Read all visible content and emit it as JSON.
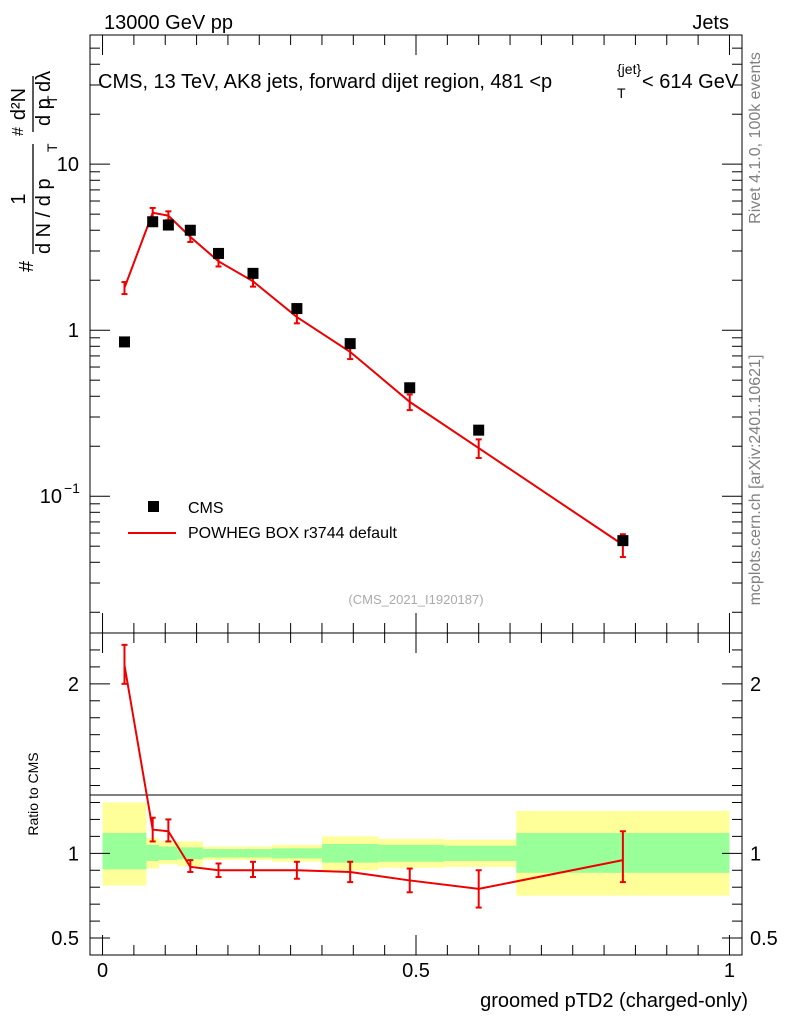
{
  "header": {
    "left": "13000 GeV pp",
    "right": "Jets"
  },
  "side_labels": {
    "rivet": "Rivet 4.1.0,  100k events",
    "mcplots": "mcplots.cern.ch [arXiv:2401.10621]"
  },
  "chart_data": {
    "type": "scatter",
    "title": "CMS, 13 TeV, AK8 jets, forward dijet region, 481 <p_T^{jet}< 614 GeV",
    "title_parts": {
      "before": "CMS, 13 TeV, AK8 jets, forward dijet region, 481 <p",
      "sup": "{jet}",
      "sub": "T",
      "after": "< 614 GeV"
    },
    "xlabel": "groomed pTD2 (charged-only)",
    "ylabel": "# 1/(dN/dp_T) # d²N/(dp_T dλ)",
    "ylabel_parts": {
      "hash": "#",
      "one": "1",
      "frac1_den": "d N / d p",
      "frac2_num": "d²N",
      "frac2_den": "d p",
      "sub": "T",
      "lambda": "dλ"
    },
    "xlim": [
      -0.02,
      1.02
    ],
    "ylim_log": [
      0.015,
      60
    ],
    "x_ticks": [
      {
        "value": 0,
        "label": "0"
      },
      {
        "value": 0.5,
        "label": "0.5"
      },
      {
        "value": 1,
        "label": "1"
      }
    ],
    "y_ticks": [
      {
        "value": 0.1,
        "label": "10",
        "exp": "−1"
      },
      {
        "value": 1,
        "label": "1",
        "exp": ""
      },
      {
        "value": 10,
        "label": "10",
        "exp": ""
      }
    ],
    "legend": {
      "position": "lower-left",
      "entries": [
        {
          "name": "CMS",
          "style": "marker"
        },
        {
          "name": "POWHEG BOX r3744 default",
          "style": "line"
        }
      ]
    },
    "watermark": "(CMS_2021_I1920187)",
    "series": [
      {
        "name": "CMS",
        "color": "#000000",
        "points": [
          {
            "x": 0.035,
            "y": 0.85
          },
          {
            "x": 0.08,
            "y": 4.5
          },
          {
            "x": 0.105,
            "y": 4.3
          },
          {
            "x": 0.14,
            "y": 4.0
          },
          {
            "x": 0.185,
            "y": 2.9
          },
          {
            "x": 0.24,
            "y": 2.2
          },
          {
            "x": 0.31,
            "y": 1.35
          },
          {
            "x": 0.395,
            "y": 0.83
          },
          {
            "x": 0.49,
            "y": 0.45
          },
          {
            "x": 0.6,
            "y": 0.25
          },
          {
            "x": 0.83,
            "y": 0.054
          }
        ]
      },
      {
        "name": "POWHEG BOX r3744 default",
        "color": "#ee0000",
        "points": [
          {
            "x": 0.035,
            "y": 1.8,
            "lo": 1.65,
            "hi": 1.95
          },
          {
            "x": 0.08,
            "y": 5.1,
            "lo": 4.75,
            "hi": 5.45
          },
          {
            "x": 0.105,
            "y": 4.9,
            "lo": 4.6,
            "hi": 5.2
          },
          {
            "x": 0.14,
            "y": 3.65,
            "lo": 3.4,
            "hi": 3.9
          },
          {
            "x": 0.185,
            "y": 2.6,
            "lo": 2.42,
            "hi": 2.78
          },
          {
            "x": 0.24,
            "y": 1.97,
            "lo": 1.83,
            "hi": 2.11
          },
          {
            "x": 0.31,
            "y": 1.2,
            "lo": 1.1,
            "hi": 1.3
          },
          {
            "x": 0.395,
            "y": 0.74,
            "lo": 0.67,
            "hi": 0.81
          },
          {
            "x": 0.49,
            "y": 0.37,
            "lo": 0.33,
            "hi": 0.41
          },
          {
            "x": 0.6,
            "y": 0.195,
            "lo": 0.17,
            "hi": 0.22
          },
          {
            "x": 0.83,
            "y": 0.051,
            "lo": 0.043,
            "hi": 0.059
          }
        ]
      }
    ],
    "ratio": {
      "ylabel": "Ratio to CMS",
      "ylim": [
        0.4,
        2.3
      ],
      "y_ticks": [
        {
          "value": 0.5,
          "label": "0.5"
        },
        {
          "value": 1,
          "label": "1"
        },
        {
          "value": 2,
          "label": "2"
        }
      ],
      "bands": [
        {
          "x0": 0.0,
          "x1": 0.07,
          "stat_lo": 0.905,
          "stat_hi": 1.12,
          "tot_lo": 0.81,
          "tot_hi": 1.3
        },
        {
          "x0": 0.07,
          "x1": 0.09,
          "stat_lo": 0.955,
          "stat_hi": 1.05,
          "tot_lo": 0.91,
          "tot_hi": 1.09
        },
        {
          "x0": 0.09,
          "x1": 0.12,
          "stat_lo": 0.96,
          "stat_hi": 1.04,
          "tot_lo": 0.935,
          "tot_hi": 1.07
        },
        {
          "x0": 0.12,
          "x1": 0.16,
          "stat_lo": 0.965,
          "stat_hi": 1.035,
          "tot_lo": 0.925,
          "tot_hi": 1.07
        },
        {
          "x0": 0.16,
          "x1": 0.21,
          "stat_lo": 0.975,
          "stat_hi": 1.025,
          "tot_lo": 0.96,
          "tot_hi": 1.04
        },
        {
          "x0": 0.21,
          "x1": 0.27,
          "stat_lo": 0.975,
          "stat_hi": 1.025,
          "tot_lo": 0.96,
          "tot_hi": 1.04
        },
        {
          "x0": 0.27,
          "x1": 0.35,
          "stat_lo": 0.97,
          "stat_hi": 1.03,
          "tot_lo": 0.95,
          "tot_hi": 1.05
        },
        {
          "x0": 0.35,
          "x1": 0.44,
          "stat_lo": 0.945,
          "stat_hi": 1.055,
          "tot_lo": 0.9,
          "tot_hi": 1.1
        },
        {
          "x0": 0.44,
          "x1": 0.545,
          "stat_lo": 0.95,
          "stat_hi": 1.05,
          "tot_lo": 0.915,
          "tot_hi": 1.085
        },
        {
          "x0": 0.545,
          "x1": 0.66,
          "stat_lo": 0.955,
          "stat_hi": 1.045,
          "tot_lo": 0.92,
          "tot_hi": 1.08
        },
        {
          "x0": 0.66,
          "x1": 1.0,
          "stat_lo": 0.885,
          "stat_hi": 1.12,
          "tot_lo": 0.75,
          "tot_hi": 1.25
        }
      ],
      "points": [
        {
          "x": 0.035,
          "y": 2.11,
          "lo": 2.0,
          "hi": 2.23
        },
        {
          "x": 0.08,
          "y": 1.14,
          "lo": 1.07,
          "hi": 1.21
        },
        {
          "x": 0.105,
          "y": 1.13,
          "lo": 1.07,
          "hi": 1.2
        },
        {
          "x": 0.14,
          "y": 0.92,
          "lo": 0.89,
          "hi": 0.96
        },
        {
          "x": 0.185,
          "y": 0.9,
          "lo": 0.86,
          "hi": 0.94
        },
        {
          "x": 0.24,
          "y": 0.9,
          "lo": 0.86,
          "hi": 0.95
        },
        {
          "x": 0.31,
          "y": 0.9,
          "lo": 0.85,
          "hi": 0.95
        },
        {
          "x": 0.395,
          "y": 0.89,
          "lo": 0.83,
          "hi": 0.95
        },
        {
          "x": 0.49,
          "y": 0.84,
          "lo": 0.77,
          "hi": 0.91
        },
        {
          "x": 0.6,
          "y": 0.79,
          "lo": 0.68,
          "hi": 0.9
        },
        {
          "x": 0.83,
          "y": 0.96,
          "lo": 0.83,
          "hi": 1.13
        }
      ]
    },
    "colors": {
      "data": "#000000",
      "mc": "#ee0000",
      "band_stat": "#99ff99",
      "band_total": "#ffff99"
    }
  }
}
